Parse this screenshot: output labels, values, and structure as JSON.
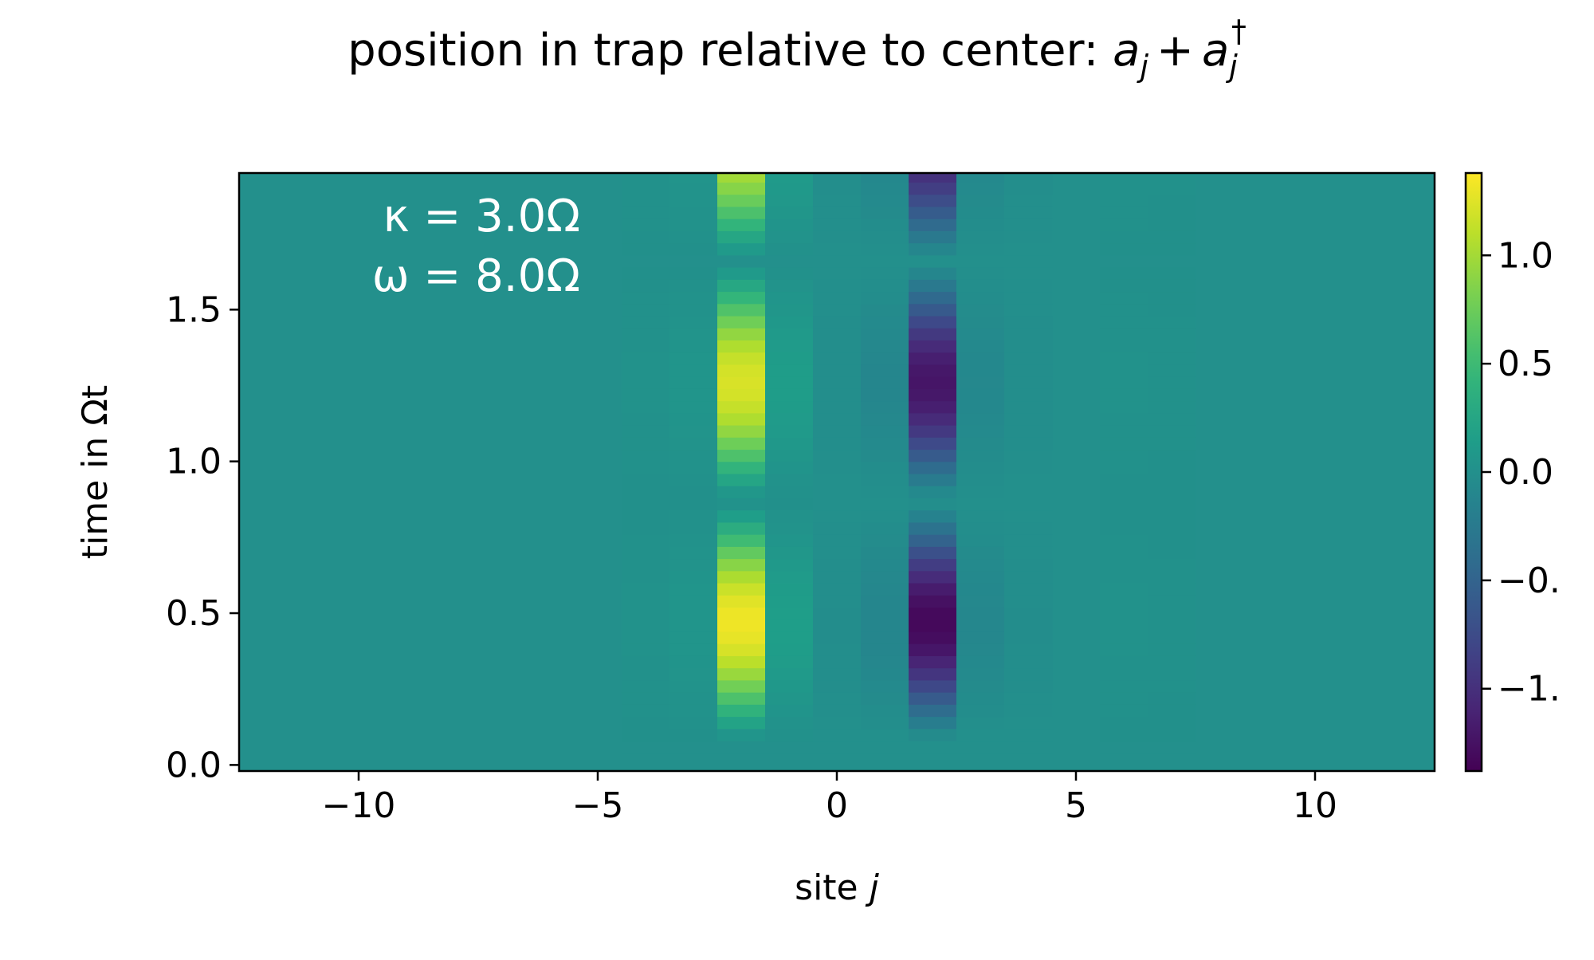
{
  "chart_data": {
    "type": "heatmap",
    "title_text": "position in trap relative to center: ",
    "title_math": {
      "a": "a",
      "sub": "j",
      "plus": "+",
      "dagger": "†"
    },
    "xlabel_text": "site ",
    "xlabel_var": "j",
    "ylabel": "time in Ωt",
    "xlim": [
      -12.5,
      12.5
    ],
    "ylim": [
      -0.02,
      1.95
    ],
    "xticks": [
      -10,
      -5,
      0,
      5,
      10
    ],
    "xtick_labels": [
      "−10",
      "−5",
      "0",
      "5",
      "10"
    ],
    "yticks": [
      0.0,
      0.5,
      1.0,
      1.5
    ],
    "ytick_labels": [
      "0.0",
      "0.5",
      "1.0",
      "1.5"
    ],
    "colorbar": {
      "colormap": "viridis",
      "vmin": -1.38,
      "vmax": 1.38,
      "ticks": [
        1.0,
        0.5,
        0.0,
        -0.5,
        -1.0
      ],
      "tick_labels": [
        "1.0",
        "0.5",
        "0.0",
        "−0.",
        "−1."
      ]
    },
    "annotations": [
      "κ = 3.0Ω",
      "ω = 8.0Ω"
    ],
    "sites": [
      -12,
      -11,
      -10,
      -9,
      -8,
      -7,
      -6,
      -5,
      -4,
      -3,
      -2,
      -1,
      0,
      1,
      2,
      3,
      4,
      5,
      6,
      7,
      8,
      9,
      10,
      11,
      12
    ],
    "time_bins": [
      0.0,
      0.04,
      0.08,
      0.12,
      0.16,
      0.2,
      0.24,
      0.28,
      0.32,
      0.36,
      0.4,
      0.44,
      0.48,
      0.52,
      0.56,
      0.6,
      0.64,
      0.68,
      0.72,
      0.76,
      0.8,
      0.84,
      0.88,
      0.92,
      0.96,
      1.0,
      1.04,
      1.08,
      1.12,
      1.16,
      1.2,
      1.24,
      1.28,
      1.32,
      1.36,
      1.4,
      1.44,
      1.48,
      1.52,
      1.56,
      1.6,
      1.64,
      1.68,
      1.72,
      1.76,
      1.8,
      1.84,
      1.88,
      1.92
    ],
    "site_amplitudes": {
      "-4": 0.02,
      "-3": 0.06,
      "-2": 1.38,
      "-1": 0.16,
      "0": -0.03,
      "1": -0.12,
      "2": -1.38,
      "3": -0.1,
      "4": -0.03,
      "5": 0.0,
      "6": 0.02,
      "7": 0.01
    },
    "oscillation_period": 0.79,
    "start_time": 0.06
  }
}
